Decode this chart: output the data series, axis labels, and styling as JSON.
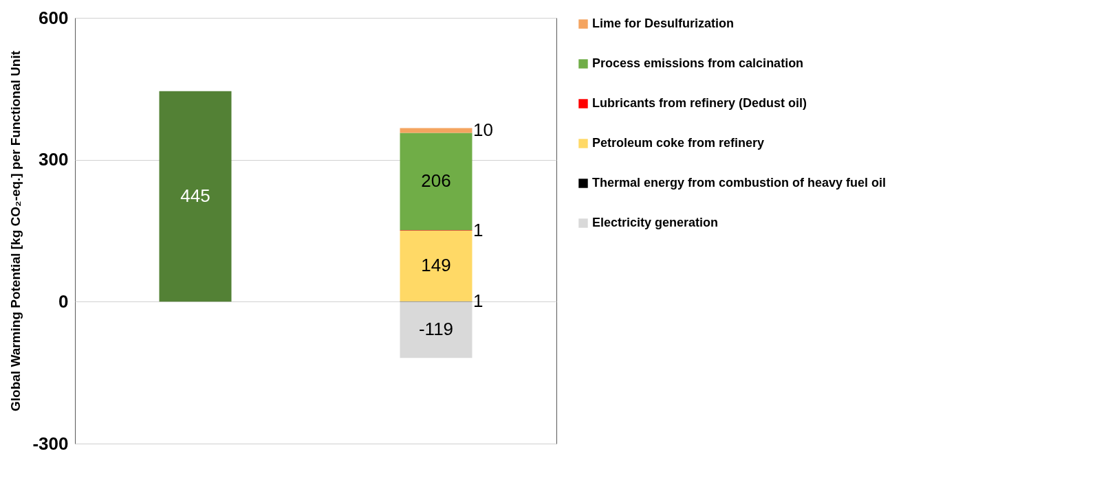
{
  "chart_data": {
    "type": "bar",
    "stacked": true,
    "categories": [
      null,
      null
    ],
    "ylabel": "Global Warming Potential [kg CO₂-eq.] per Functional Unit",
    "ylim": [
      -300,
      600
    ],
    "yticks": [
      -300,
      0,
      300,
      600
    ],
    "grid": "y",
    "legend": "right",
    "data_labels": true,
    "series": [
      {
        "color": "#538135",
        "values": [
          445,
          null
        ]
      },
      {
        "name": "Electricity generation",
        "color": "#d9d9d9",
        "values": [
          null,
          -119
        ]
      },
      {
        "name": "Thermal energy from combustion of heavy fuel oil",
        "color": "#000000",
        "values": [
          null,
          1
        ]
      },
      {
        "name": "Petroleum coke from refinery",
        "color": "#ffd966",
        "values": [
          null,
          149
        ]
      },
      {
        "name": "Lubricants from refinery (Dedust oil)",
        "color": "#ff0000",
        "values": [
          null,
          1
        ]
      },
      {
        "name": "Process emissions  from calcination",
        "color": "#70ad47",
        "values": [
          null,
          206
        ]
      },
      {
        "name": "Lime for Desulfurization",
        "color": "#f4a460",
        "values": [
          null,
          10
        ]
      }
    ]
  }
}
